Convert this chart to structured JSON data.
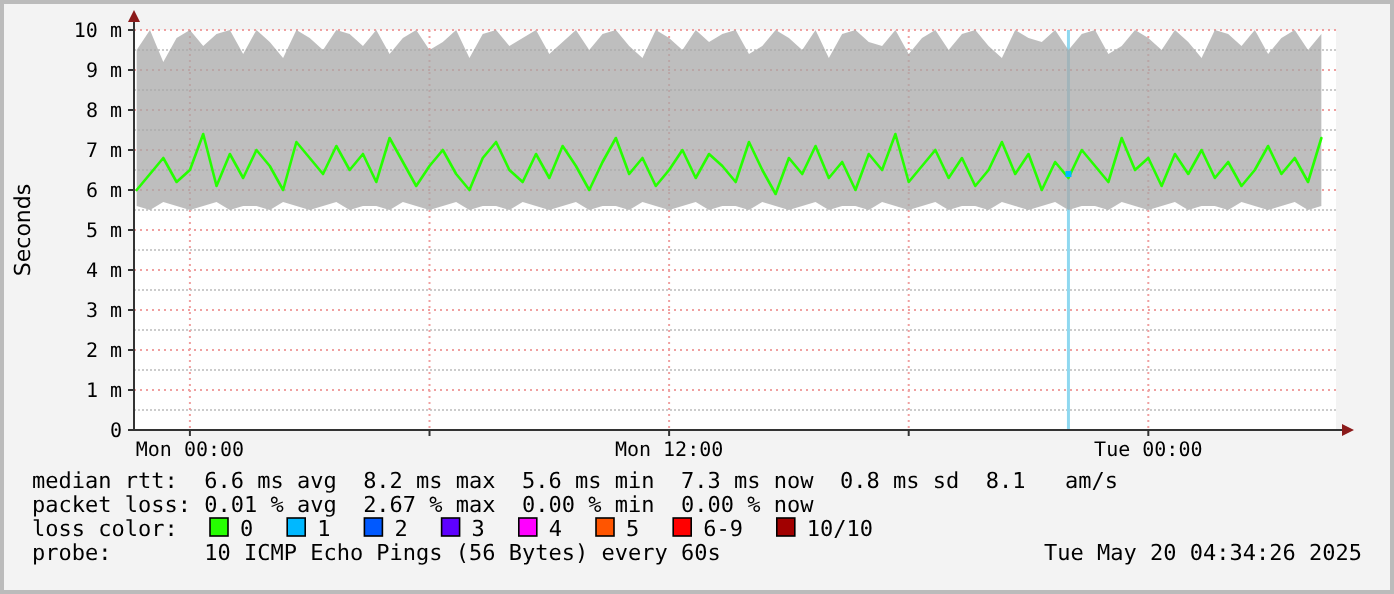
{
  "chart_data": {
    "type": "line",
    "ylabel": "Seconds",
    "legend_title": "loss color:",
    "legend": "bottom",
    "grid": true,
    "xlim": [
      "2025-05-18T22:36",
      "2025-05-20T04:42"
    ],
    "xticks": [
      {
        "value": "2025-05-19T00:00",
        "label": "Mon 00:00"
      },
      {
        "value": "2025-05-19T06:00",
        "label": null
      },
      {
        "value": "2025-05-19T12:00",
        "label": "Mon 12:00"
      },
      {
        "value": "2025-05-19T18:00",
        "label": null
      },
      {
        "value": "2025-05-20T00:00",
        "label": "Tue 00:00"
      }
    ],
    "ylim": [
      0,
      10
    ],
    "yticks": [
      {
        "value": 0,
        "label": "0"
      },
      {
        "value": 1,
        "label": "1 m"
      },
      {
        "value": 2,
        "label": "2 m"
      },
      {
        "value": 3,
        "label": "3 m"
      },
      {
        "value": 4,
        "label": "4 m"
      },
      {
        "value": 5,
        "label": "5 m"
      },
      {
        "value": 6,
        "label": "6 m"
      },
      {
        "value": 7,
        "label": "7 m"
      },
      {
        "value": 8,
        "label": "8 m"
      },
      {
        "value": 9,
        "label": "9 m"
      },
      {
        "value": 10,
        "label": "10 m"
      }
    ],
    "x": [
      "2025-05-18T22:40",
      "2025-05-18T23:00",
      "2025-05-18T23:20",
      "2025-05-18T23:40",
      "2025-05-19T00:00",
      "2025-05-19T00:20",
      "2025-05-19T00:40",
      "2025-05-19T01:00",
      "2025-05-19T01:20",
      "2025-05-19T01:40",
      "2025-05-19T02:00",
      "2025-05-19T02:20",
      "2025-05-19T02:40",
      "2025-05-19T03:00",
      "2025-05-19T03:20",
      "2025-05-19T03:40",
      "2025-05-19T04:00",
      "2025-05-19T04:20",
      "2025-05-19T04:40",
      "2025-05-19T05:00",
      "2025-05-19T05:20",
      "2025-05-19T05:40",
      "2025-05-19T06:00",
      "2025-05-19T06:20",
      "2025-05-19T06:40",
      "2025-05-19T07:00",
      "2025-05-19T07:20",
      "2025-05-19T07:40",
      "2025-05-19T08:00",
      "2025-05-19T08:20",
      "2025-05-19T08:40",
      "2025-05-19T09:00",
      "2025-05-19T09:20",
      "2025-05-19T09:40",
      "2025-05-19T10:00",
      "2025-05-19T10:20",
      "2025-05-19T10:40",
      "2025-05-19T11:00",
      "2025-05-19T11:20",
      "2025-05-19T11:40",
      "2025-05-19T12:00",
      "2025-05-19T12:20",
      "2025-05-19T12:40",
      "2025-05-19T13:00",
      "2025-05-19T13:20",
      "2025-05-19T13:40",
      "2025-05-19T14:00",
      "2025-05-19T14:20",
      "2025-05-19T14:40",
      "2025-05-19T15:00",
      "2025-05-19T15:20",
      "2025-05-19T15:40",
      "2025-05-19T16:00",
      "2025-05-19T16:20",
      "2025-05-19T16:40",
      "2025-05-19T17:00",
      "2025-05-19T17:20",
      "2025-05-19T17:40",
      "2025-05-19T18:00",
      "2025-05-19T18:20",
      "2025-05-19T18:40",
      "2025-05-19T19:00",
      "2025-05-19T19:20",
      "2025-05-19T19:40",
      "2025-05-19T20:00",
      "2025-05-19T20:20",
      "2025-05-19T20:40",
      "2025-05-19T21:00",
      "2025-05-19T21:20",
      "2025-05-19T21:40",
      "2025-05-19T22:00",
      "2025-05-19T22:20",
      "2025-05-19T22:40",
      "2025-05-19T23:00",
      "2025-05-19T23:20",
      "2025-05-19T23:40",
      "2025-05-20T00:00",
      "2025-05-20T00:20",
      "2025-05-20T00:40",
      "2025-05-20T01:00",
      "2025-05-20T01:20",
      "2025-05-20T01:40",
      "2025-05-20T02:00",
      "2025-05-20T02:20",
      "2025-05-20T02:40",
      "2025-05-20T03:00",
      "2025-05-20T03:20",
      "2025-05-20T03:40",
      "2025-05-20T04:00",
      "2025-05-20T04:20"
    ],
    "series": [
      {
        "name": "0",
        "color": "#26ff00",
        "values": [
          6.0,
          6.4,
          6.8,
          6.2,
          6.5,
          7.4,
          6.1,
          6.9,
          6.3,
          7.0,
          6.6,
          6.0,
          7.2,
          6.8,
          6.4,
          7.1,
          6.5,
          6.9,
          6.2,
          7.3,
          6.7,
          6.1,
          6.6,
          7.0,
          6.4,
          6.0,
          6.8,
          7.2,
          6.5,
          6.2,
          6.9,
          6.3,
          7.1,
          6.6,
          6.0,
          6.7,
          7.3,
          6.4,
          6.8,
          6.1,
          6.5,
          7.0,
          6.3,
          6.9,
          6.6,
          6.2,
          7.2,
          6.5,
          5.9,
          6.8,
          6.4,
          7.1,
          6.3,
          6.7,
          6.0,
          6.9,
          6.5,
          7.4,
          6.2,
          6.6,
          7.0,
          6.3,
          6.8,
          6.1,
          6.5,
          7.2,
          6.4,
          6.9,
          6.0,
          6.7,
          6.3,
          7.0,
          6.6,
          6.2,
          7.3,
          6.5,
          6.8,
          6.1,
          6.9,
          6.4,
          7.0,
          6.3,
          6.7,
          6.1,
          6.5,
          7.1,
          6.4,
          6.8,
          6.2,
          7.3
        ],
        "lower": [
          5.6,
          5.5,
          5.7,
          5.6,
          5.5,
          5.6,
          5.7,
          5.5,
          5.6,
          5.6,
          5.5,
          5.7,
          5.6,
          5.5,
          5.6,
          5.7,
          5.5,
          5.6,
          5.6,
          5.5,
          5.7,
          5.6,
          5.5,
          5.6,
          5.7,
          5.5,
          5.6,
          5.6,
          5.5,
          5.7,
          5.6,
          5.5,
          5.6,
          5.7,
          5.5,
          5.6,
          5.6,
          5.5,
          5.7,
          5.6,
          5.5,
          5.6,
          5.7,
          5.5,
          5.6,
          5.6,
          5.5,
          5.7,
          5.6,
          5.5,
          5.6,
          5.7,
          5.5,
          5.6,
          5.6,
          5.5,
          5.7,
          5.6,
          5.5,
          5.6,
          5.7,
          5.5,
          5.6,
          5.6,
          5.5,
          5.7,
          5.6,
          5.5,
          5.6,
          5.7,
          5.5,
          5.6,
          5.6,
          5.5,
          5.7,
          5.6,
          5.5,
          5.6,
          5.7,
          5.5,
          5.6,
          5.6,
          5.5,
          5.7,
          5.6,
          5.5,
          5.6,
          5.7,
          5.5,
          5.6
        ],
        "upper": [
          9.5,
          10,
          9.2,
          9.8,
          10,
          9.6,
          9.9,
          10,
          9.4,
          10,
          9.7,
          9.3,
          10,
          9.8,
          9.5,
          10,
          9.9,
          9.6,
          10,
          9.4,
          9.8,
          10,
          9.5,
          9.7,
          10,
          9.3,
          9.9,
          10,
          9.6,
          9.8,
          10,
          9.4,
          9.7,
          10,
          9.5,
          9.9,
          10,
          9.6,
          9.3,
          10,
          9.8,
          9.5,
          10,
          9.7,
          9.9,
          10,
          9.4,
          9.6,
          10,
          9.8,
          9.5,
          10,
          9.3,
          9.9,
          10,
          9.7,
          9.6,
          10,
          9.4,
          9.8,
          10,
          9.5,
          9.9,
          10,
          9.6,
          9.3,
          10,
          9.8,
          9.7,
          10,
          9.5,
          9.9,
          10,
          9.4,
          9.6,
          10,
          9.8,
          9.5,
          10,
          9.7,
          9.3,
          10,
          9.9,
          9.6,
          10,
          9.4,
          9.8,
          10,
          9.5,
          9.9
        ]
      },
      {
        "name": "1",
        "color": "#00b8ff",
        "type": "scatter",
        "x": [
          "2025-05-19T22:00"
        ],
        "values": [
          6.4
        ]
      },
      {
        "name": "2",
        "color": "#0059ff",
        "type": "scatter",
        "values": [
          null,
          null,
          null,
          null,
          null,
          null,
          null,
          null,
          null,
          null,
          null,
          null,
          null,
          null,
          null,
          null,
          null,
          null,
          null,
          null,
          null,
          null,
          null,
          null,
          null,
          null,
          null,
          null,
          null,
          null,
          null,
          null,
          null,
          null,
          null,
          null,
          null,
          null,
          null,
          null,
          null,
          null,
          null,
          null,
          null,
          null,
          null,
          null,
          null,
          null,
          null,
          null,
          null,
          null,
          null,
          null,
          null,
          null,
          null,
          null,
          null,
          null,
          null,
          null,
          null,
          null,
          null,
          null,
          null,
          null,
          null,
          null,
          null,
          null,
          null,
          null,
          null,
          null,
          null,
          null,
          null,
          null,
          null,
          null,
          null,
          null,
          null,
          null,
          null,
          null
        ]
      },
      {
        "name": "3",
        "color": "#5e00ff",
        "type": "scatter",
        "values": [
          null,
          null,
          null,
          null,
          null,
          null,
          null,
          null,
          null,
          null,
          null,
          null,
          null,
          null,
          null,
          null,
          null,
          null,
          null,
          null,
          null,
          null,
          null,
          null,
          null,
          null,
          null,
          null,
          null,
          null,
          null,
          null,
          null,
          null,
          null,
          null,
          null,
          null,
          null,
          null,
          null,
          null,
          null,
          null,
          null,
          null,
          null,
          null,
          null,
          null,
          null,
          null,
          null,
          null,
          null,
          null,
          null,
          null,
          null,
          null,
          null,
          null,
          null,
          null,
          null,
          null,
          null,
          null,
          null,
          null,
          null,
          null,
          null,
          null,
          null,
          null,
          null,
          null,
          null,
          null,
          null,
          null,
          null,
          null,
          null,
          null,
          null,
          null,
          null,
          null
        ]
      },
      {
        "name": "4",
        "color": "#ff00ff",
        "type": "scatter",
        "values": [
          null,
          null,
          null,
          null,
          null,
          null,
          null,
          null,
          null,
          null,
          null,
          null,
          null,
          null,
          null,
          null,
          null,
          null,
          null,
          null,
          null,
          null,
          null,
          null,
          null,
          null,
          null,
          null,
          null,
          null,
          null,
          null,
          null,
          null,
          null,
          null,
          null,
          null,
          null,
          null,
          null,
          null,
          null,
          null,
          null,
          null,
          null,
          null,
          null,
          null,
          null,
          null,
          null,
          null,
          null,
          null,
          null,
          null,
          null,
          null,
          null,
          null,
          null,
          null,
          null,
          null,
          null,
          null,
          null,
          null,
          null,
          null,
          null,
          null,
          null,
          null,
          null,
          null,
          null,
          null,
          null,
          null,
          null,
          null,
          null,
          null,
          null,
          null,
          null,
          null
        ]
      },
      {
        "name": "5",
        "color": "#ff5500",
        "type": "scatter",
        "values": [
          null,
          null,
          null,
          null,
          null,
          null,
          null,
          null,
          null,
          null,
          null,
          null,
          null,
          null,
          null,
          null,
          null,
          null,
          null,
          null,
          null,
          null,
          null,
          null,
          null,
          null,
          null,
          null,
          null,
          null,
          null,
          null,
          null,
          null,
          null,
          null,
          null,
          null,
          null,
          null,
          null,
          null,
          null,
          null,
          null,
          null,
          null,
          null,
          null,
          null,
          null,
          null,
          null,
          null,
          null,
          null,
          null,
          null,
          null,
          null,
          null,
          null,
          null,
          null,
          null,
          null,
          null,
          null,
          null,
          null,
          null,
          null,
          null,
          null,
          null,
          null,
          null,
          null,
          null,
          null,
          null,
          null,
          null,
          null,
          null,
          null,
          null,
          null,
          null,
          null
        ]
      },
      {
        "name": "6-9",
        "color": "#ff0000",
        "type": "scatter",
        "values": [
          null,
          null,
          null,
          null,
          null,
          null,
          null,
          null,
          null,
          null,
          null,
          null,
          null,
          null,
          null,
          null,
          null,
          null,
          null,
          null,
          null,
          null,
          null,
          null,
          null,
          null,
          null,
          null,
          null,
          null,
          null,
          null,
          null,
          null,
          null,
          null,
          null,
          null,
          null,
          null,
          null,
          null,
          null,
          null,
          null,
          null,
          null,
          null,
          null,
          null,
          null,
          null,
          null,
          null,
          null,
          null,
          null,
          null,
          null,
          null,
          null,
          null,
          null,
          null,
          null,
          null,
          null,
          null,
          null,
          null,
          null,
          null,
          null,
          null,
          null,
          null,
          null,
          null,
          null,
          null,
          null,
          null,
          null,
          null,
          null,
          null,
          null,
          null,
          null,
          null
        ]
      },
      {
        "name": "10/10",
        "color": "#a10000",
        "type": "scatter",
        "values": [
          null,
          null,
          null,
          null,
          null,
          null,
          null,
          null,
          null,
          null,
          null,
          null,
          null,
          null,
          null,
          null,
          null,
          null,
          null,
          null,
          null,
          null,
          null,
          null,
          null,
          null,
          null,
          null,
          null,
          null,
          null,
          null,
          null,
          null,
          null,
          null,
          null,
          null,
          null,
          null,
          null,
          null,
          null,
          null,
          null,
          null,
          null,
          null,
          null,
          null,
          null,
          null,
          null,
          null,
          null,
          null,
          null,
          null,
          null,
          null,
          null,
          null,
          null,
          null,
          null,
          null,
          null,
          null,
          null,
          null,
          null,
          null,
          null,
          null,
          null,
          null,
          null,
          null,
          null,
          null,
          null,
          null,
          null,
          null,
          null,
          null,
          null,
          null,
          null,
          null
        ]
      }
    ],
    "ref_lines": [
      {
        "axis": "x",
        "value": "2025-05-19T22:00",
        "color": "#8fd8f0"
      }
    ],
    "annotations": [
      "median rtt:  6.6 ms avg  8.2 ms max  5.6 ms min  7.3 ms now  0.8 ms sd  8.1   am/s",
      "packet loss: 0.01 % avg  2.67 % max  0.00 % min  0.00 % now",
      "probe:       10 ICMP Echo Pings (56 Bytes) every 60s",
      "Tue May 20 04:34:26 2025"
    ]
  }
}
